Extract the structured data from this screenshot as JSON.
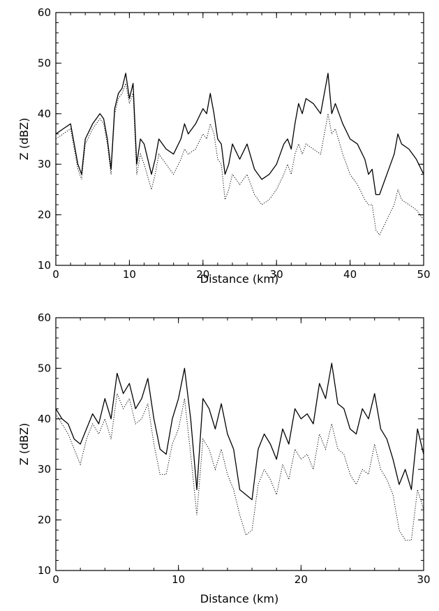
{
  "chart_data": [
    {
      "type": "line",
      "xlabel": "Distance (km)",
      "ylabel": "Z (dBZ)",
      "xlim": [
        0,
        50
      ],
      "ylim": [
        10,
        60
      ],
      "xticks": [
        0,
        10,
        20,
        30,
        40,
        50
      ],
      "yticks": [
        10,
        20,
        30,
        40,
        50,
        60
      ],
      "grid": false,
      "series": [
        {
          "style": "solid",
          "x": [
            0,
            1,
            2,
            3,
            3.5,
            4,
            5,
            6,
            6.5,
            7,
            7.5,
            8,
            8.5,
            9,
            9.5,
            10,
            10.5,
            11,
            11.5,
            12,
            13,
            13.5,
            14,
            15,
            16,
            17,
            17.5,
            18,
            19,
            20,
            20.5,
            21,
            21.5,
            22,
            22.5,
            23,
            23.5,
            24,
            25,
            26,
            27,
            28,
            29,
            30,
            31,
            31.5,
            32,
            32.5,
            33,
            33.5,
            34,
            35,
            36,
            36.5,
            37,
            37.5,
            38,
            39,
            40,
            41,
            42,
            42.5,
            43,
            43.5,
            44,
            45,
            46,
            46.5,
            47,
            48,
            49,
            50
          ],
          "y": [
            36,
            37,
            38,
            30,
            28,
            35,
            38,
            40,
            39,
            35,
            29,
            41,
            44,
            45,
            48,
            43,
            46,
            30,
            35,
            34,
            28,
            31,
            35,
            33,
            32,
            35,
            38,
            36,
            38,
            41,
            40,
            44,
            40,
            35,
            34,
            28,
            30,
            34,
            31,
            34,
            29,
            27,
            28,
            30,
            34,
            35,
            33,
            38,
            42,
            40,
            43,
            42,
            40,
            44,
            48,
            40,
            42,
            38,
            35,
            34,
            31,
            28,
            29,
            24,
            24,
            28,
            32,
            36,
            34,
            33,
            31,
            28
          ]
        },
        {
          "style": "dotted",
          "x": [
            0,
            1,
            2,
            3,
            3.5,
            4,
            5,
            6,
            6.5,
            7,
            7.5,
            8,
            8.5,
            9,
            9.5,
            10,
            10.5,
            11,
            11.5,
            12,
            13,
            13.5,
            14,
            15,
            16,
            17,
            17.5,
            18,
            19,
            20,
            20.5,
            21,
            21.5,
            22,
            22.5,
            23,
            23.5,
            24,
            25,
            26,
            27,
            28,
            29,
            30,
            31,
            31.5,
            32,
            32.5,
            33,
            33.5,
            34,
            35,
            36,
            36.5,
            37,
            37.5,
            38,
            39,
            40,
            41,
            42,
            42.5,
            43,
            43.5,
            44,
            45,
            46,
            46.5,
            47,
            48,
            49,
            50
          ],
          "y": [
            35,
            36,
            37,
            29,
            27,
            34,
            37,
            39,
            38,
            34,
            28,
            40,
            43,
            44,
            46,
            42,
            44,
            28,
            32,
            30,
            25,
            28,
            32,
            30,
            28,
            31,
            33,
            32,
            33,
            36,
            35,
            38,
            36,
            31,
            30,
            23,
            25,
            28,
            26,
            28,
            24,
            22,
            23,
            25,
            28,
            30,
            28,
            32,
            34,
            32,
            34,
            33,
            32,
            36,
            40,
            36,
            37,
            32,
            28,
            26,
            23,
            22,
            22,
            17,
            16,
            19,
            22,
            25,
            23,
            22,
            21,
            19
          ]
        }
      ]
    },
    {
      "type": "line",
      "xlabel": "Distance (km)",
      "ylabel": "Z (dBZ)",
      "xlim": [
        0,
        30
      ],
      "ylim": [
        10,
        60
      ],
      "xticks": [
        0,
        10,
        20,
        30
      ],
      "yticks": [
        10,
        20,
        30,
        40,
        50,
        60
      ],
      "grid": false,
      "series": [
        {
          "style": "solid",
          "x": [
            0,
            0.5,
            1,
            1.5,
            2,
            2.5,
            3,
            3.5,
            4,
            4.5,
            5,
            5.5,
            6,
            6.5,
            7,
            7.5,
            8,
            8.5,
            9,
            9.5,
            10,
            10.5,
            11,
            11.5,
            12,
            12.5,
            13,
            13.5,
            14,
            14.5,
            15,
            15.5,
            16,
            16.5,
            17,
            17.5,
            18,
            18.5,
            19,
            19.5,
            20,
            20.5,
            21,
            21.5,
            22,
            22.5,
            23,
            23.5,
            24,
            24.5,
            25,
            25.5,
            26,
            26.5,
            27,
            27.5,
            28,
            28.5,
            29,
            29.5,
            30
          ],
          "y": [
            42,
            40,
            39,
            36,
            35,
            38,
            41,
            39,
            44,
            40,
            49,
            45,
            47,
            42,
            44,
            48,
            40,
            34,
            33,
            40,
            44,
            50,
            40,
            26,
            44,
            42,
            38,
            43,
            37,
            34,
            26,
            25,
            24,
            34,
            37,
            35,
            32,
            38,
            35,
            42,
            40,
            41,
            39,
            47,
            44,
            51,
            43,
            42,
            38,
            37,
            42,
            40,
            45,
            38,
            36,
            32,
            27,
            30,
            26,
            38,
            33
          ]
        },
        {
          "style": "dotted",
          "x": [
            0,
            0.5,
            1,
            1.5,
            2,
            2.5,
            3,
            3.5,
            4,
            4.5,
            5,
            5.5,
            6,
            6.5,
            7,
            7.5,
            8,
            8.5,
            9,
            9.5,
            10,
            10.5,
            11,
            11.5,
            12,
            12.5,
            13,
            13.5,
            14,
            14.5,
            15,
            15.5,
            16,
            16.5,
            17,
            17.5,
            18,
            18.5,
            19,
            19.5,
            20,
            20.5,
            21,
            21.5,
            22,
            22.5,
            23,
            23.5,
            24,
            24.5,
            25,
            25.5,
            26,
            26.5,
            27,
            27.5,
            28,
            28.5,
            29,
            29.5,
            30
          ],
          "y": [
            41,
            39,
            37,
            34,
            31,
            36,
            39,
            37,
            40,
            36,
            45,
            42,
            44,
            39,
            40,
            43,
            35,
            29,
            29,
            35,
            38,
            44,
            33,
            21,
            36,
            34,
            30,
            34,
            29,
            26,
            21,
            17,
            18,
            27,
            30,
            28,
            25,
            31,
            28,
            34,
            32,
            33,
            30,
            37,
            34,
            39,
            34,
            33,
            29,
            27,
            30,
            29,
            35,
            30,
            28,
            25,
            18,
            16,
            16,
            26,
            22
          ]
        }
      ]
    }
  ]
}
